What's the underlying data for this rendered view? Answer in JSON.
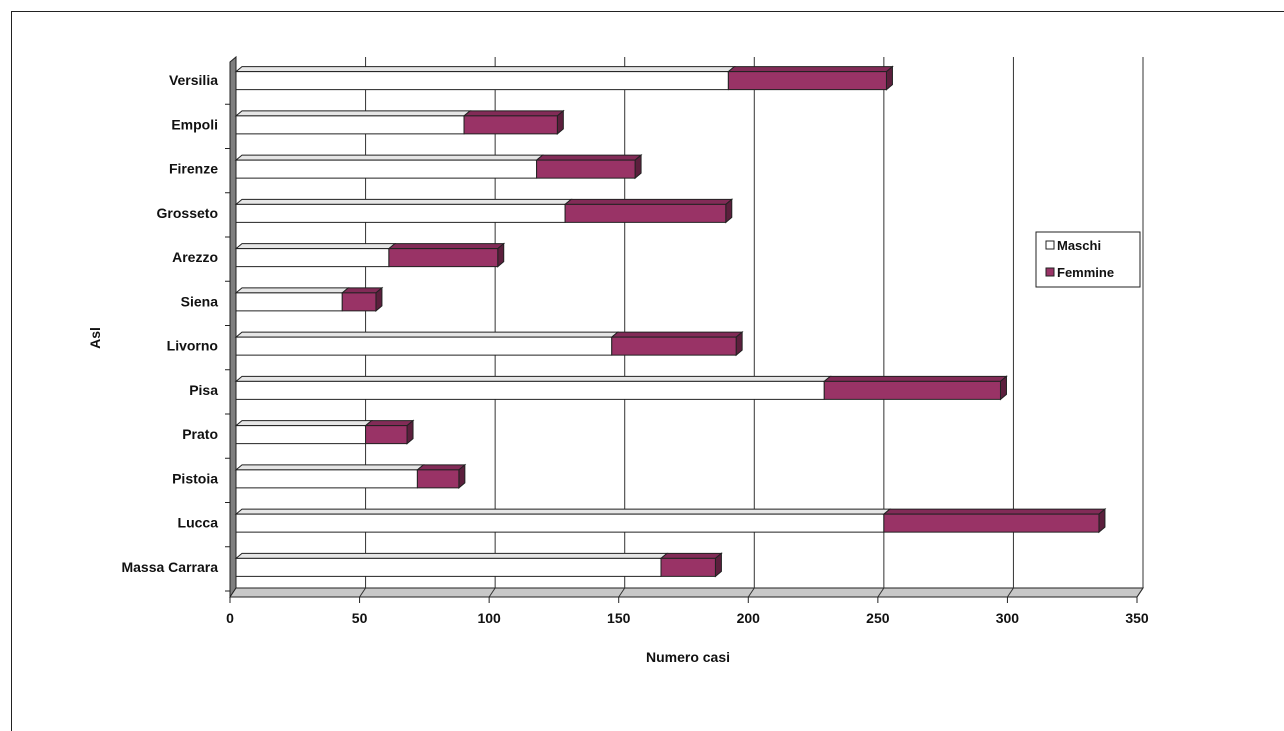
{
  "chart_data": {
    "type": "bar",
    "orientation": "horizontal",
    "stacked": true,
    "three_d": true,
    "categories": [
      "Massa Carrara",
      "Lucca",
      "Pistoia",
      "Prato",
      "Pisa",
      "Livorno",
      "Siena",
      "Arezzo",
      "Grosseto",
      "Firenze",
      "Empoli",
      "Versilia"
    ],
    "series": [
      {
        "name": "Maschi",
        "color": "#ffffff",
        "values": [
          164,
          250,
          70,
          50,
          227,
          145,
          41,
          59,
          127,
          116,
          88,
          190
        ]
      },
      {
        "name": "Femmine",
        "color": "#993366",
        "values": [
          21,
          83,
          16,
          16,
          68,
          48,
          13,
          42,
          62,
          38,
          36,
          61
        ]
      }
    ],
    "xlabel": "Numero casi",
    "ylabel": "Asl",
    "xlim": [
      0,
      350
    ],
    "xticks": [
      "0",
      "50",
      "100",
      "150",
      "200",
      "250",
      "300",
      "350"
    ],
    "grid": true,
    "legend_position": "right"
  }
}
